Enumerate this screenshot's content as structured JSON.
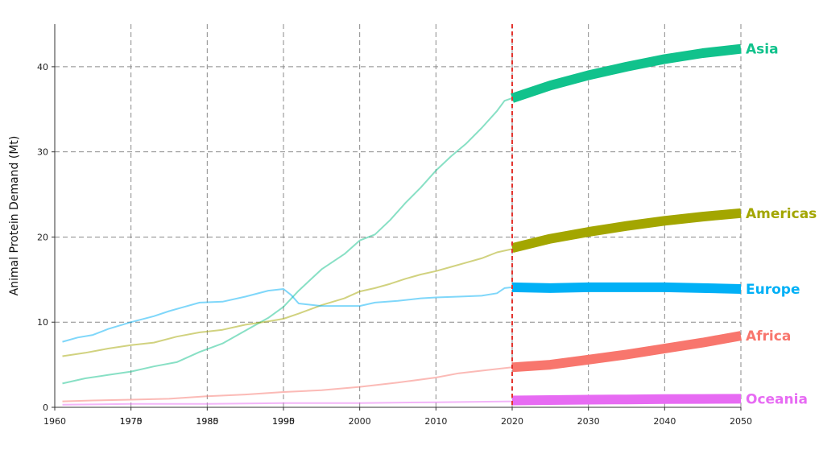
{
  "chart_data": {
    "type": "line",
    "title": "",
    "xlabel": "",
    "ylabel": "Animal Protein Demand (Mt)",
    "xlim": [
      1960,
      2050
    ],
    "ylim": [
      0,
      45
    ],
    "grid": true,
    "x_ticks": [
      "1960",
      "1970",
      "1980",
      "1990",
      "2000",
      "2010",
      "2020",
      "2030",
      "2040",
      "2050"
    ],
    "x_ticks_overlay": [
      "1975",
      "1985",
      "1995"
    ],
    "y_ticks": [
      "0",
      "10",
      "20",
      "30",
      "40"
    ],
    "projection_start": 2020,
    "projection_line_color": "#e3342f",
    "series": [
      {
        "name": "Asia",
        "color": "#11c28c",
        "historical": [
          [
            1961,
            2.8
          ],
          [
            1964,
            3.4
          ],
          [
            1967,
            3.8
          ],
          [
            1970,
            4.2
          ],
          [
            1973,
            4.8
          ],
          [
            1976,
            5.3
          ],
          [
            1979,
            6.5
          ],
          [
            1982,
            7.5
          ],
          [
            1985,
            9.0
          ],
          [
            1988,
            10.5
          ],
          [
            1990,
            11.8
          ],
          [
            1992,
            13.7
          ],
          [
            1995,
            16.2
          ],
          [
            1998,
            18.0
          ],
          [
            2000,
            19.6
          ],
          [
            2002,
            20.3
          ],
          [
            2004,
            22.0
          ],
          [
            2006,
            24.0
          ],
          [
            2008,
            25.8
          ],
          [
            2010,
            27.8
          ],
          [
            2012,
            29.5
          ],
          [
            2014,
            31.0
          ],
          [
            2016,
            32.8
          ],
          [
            2018,
            34.8
          ],
          [
            2019,
            36.0
          ],
          [
            2020,
            36.3
          ]
        ],
        "projection": [
          [
            2020,
            36.3
          ],
          [
            2025,
            37.8
          ],
          [
            2030,
            39.0
          ],
          [
            2035,
            40.0
          ],
          [
            2040,
            40.9
          ],
          [
            2045,
            41.6
          ],
          [
            2050,
            42.1
          ]
        ]
      },
      {
        "name": "Americas",
        "color": "#a3a600",
        "historical": [
          [
            1961,
            6.0
          ],
          [
            1964,
            6.4
          ],
          [
            1967,
            6.9
          ],
          [
            1970,
            7.3
          ],
          [
            1973,
            7.6
          ],
          [
            1976,
            8.3
          ],
          [
            1979,
            8.8
          ],
          [
            1982,
            9.1
          ],
          [
            1985,
            9.7
          ],
          [
            1988,
            10.1
          ],
          [
            1990,
            10.4
          ],
          [
            1992,
            11.0
          ],
          [
            1995,
            12.0
          ],
          [
            1998,
            12.8
          ],
          [
            2000,
            13.6
          ],
          [
            2002,
            14.0
          ],
          [
            2004,
            14.5
          ],
          [
            2006,
            15.1
          ],
          [
            2008,
            15.6
          ],
          [
            2010,
            16.0
          ],
          [
            2012,
            16.5
          ],
          [
            2014,
            17.0
          ],
          [
            2016,
            17.5
          ],
          [
            2018,
            18.2
          ],
          [
            2020,
            18.6
          ]
        ],
        "projection": [
          [
            2020,
            18.7
          ],
          [
            2025,
            19.8
          ],
          [
            2030,
            20.6
          ],
          [
            2035,
            21.3
          ],
          [
            2040,
            21.9
          ],
          [
            2045,
            22.4
          ],
          [
            2050,
            22.8
          ]
        ]
      },
      {
        "name": "Europe",
        "color": "#00b0f6",
        "historical": [
          [
            1961,
            7.7
          ],
          [
            1963,
            8.2
          ],
          [
            1965,
            8.5
          ],
          [
            1967,
            9.2
          ],
          [
            1970,
            10.0
          ],
          [
            1973,
            10.7
          ],
          [
            1975,
            11.3
          ],
          [
            1977,
            11.8
          ],
          [
            1979,
            12.3
          ],
          [
            1982,
            12.4
          ],
          [
            1985,
            13.0
          ],
          [
            1988,
            13.7
          ],
          [
            1990,
            13.9
          ],
          [
            1991,
            13.2
          ],
          [
            1992,
            12.2
          ],
          [
            1995,
            11.9
          ],
          [
            1998,
            11.9
          ],
          [
            2000,
            11.9
          ],
          [
            2002,
            12.3
          ],
          [
            2005,
            12.5
          ],
          [
            2008,
            12.8
          ],
          [
            2010,
            12.9
          ],
          [
            2013,
            13.0
          ],
          [
            2016,
            13.1
          ],
          [
            2018,
            13.4
          ],
          [
            2019,
            14.0
          ],
          [
            2020,
            14.1
          ]
        ],
        "projection": [
          [
            2020,
            14.1
          ],
          [
            2025,
            14.0
          ],
          [
            2030,
            14.1
          ],
          [
            2035,
            14.1
          ],
          [
            2040,
            14.1
          ],
          [
            2045,
            14.0
          ],
          [
            2050,
            13.9
          ]
        ]
      },
      {
        "name": "Africa",
        "color": "#f8766d",
        "historical": [
          [
            1961,
            0.7
          ],
          [
            1965,
            0.8
          ],
          [
            1970,
            0.9
          ],
          [
            1975,
            1.0
          ],
          [
            1980,
            1.3
          ],
          [
            1985,
            1.5
          ],
          [
            1990,
            1.8
          ],
          [
            1995,
            2.0
          ],
          [
            2000,
            2.4
          ],
          [
            2005,
            2.9
          ],
          [
            2010,
            3.5
          ],
          [
            2013,
            4.0
          ],
          [
            2016,
            4.3
          ],
          [
            2020,
            4.7
          ]
        ],
        "projection": [
          [
            2020,
            4.7
          ],
          [
            2025,
            5.0
          ],
          [
            2030,
            5.6
          ],
          [
            2035,
            6.2
          ],
          [
            2040,
            6.9
          ],
          [
            2045,
            7.6
          ],
          [
            2050,
            8.4
          ]
        ]
      },
      {
        "name": "Oceania",
        "color": "#e76bf3",
        "historical": [
          [
            1961,
            0.3
          ],
          [
            1970,
            0.4
          ],
          [
            1980,
            0.4
          ],
          [
            1990,
            0.5
          ],
          [
            2000,
            0.5
          ],
          [
            2010,
            0.6
          ],
          [
            2020,
            0.7
          ]
        ],
        "projection": [
          [
            2020,
            0.8
          ],
          [
            2025,
            0.85
          ],
          [
            2030,
            0.9
          ],
          [
            2035,
            0.93
          ],
          [
            2040,
            0.96
          ],
          [
            2045,
            0.98
          ],
          [
            2050,
            1.0
          ]
        ]
      }
    ]
  }
}
